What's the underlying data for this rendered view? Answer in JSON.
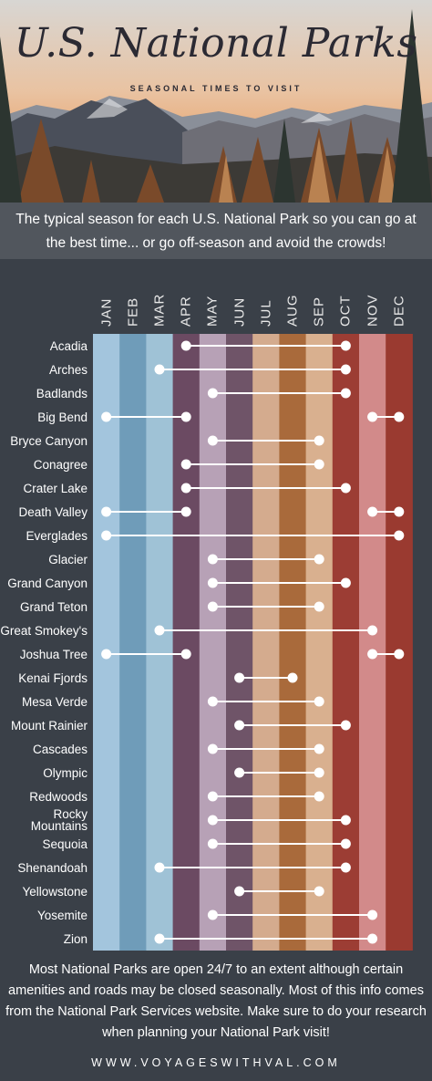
{
  "header": {
    "title": "U.S. National Parks",
    "subtitle": "SEASONAL TIMES TO VISIT"
  },
  "intro": "The typical season for each U.S. National Park so you can go at the best time... or go off-season and avoid the crowds!",
  "months": [
    "JAN",
    "FEB",
    "MAR",
    "APR",
    "MAY",
    "JUN",
    "JUL",
    "AUG",
    "SEP",
    "OCT",
    "NOV",
    "DEC"
  ],
  "month_colors": [
    "#a3c5dd",
    "#6f9cb9",
    "#9fc2d6",
    "#6b4a62",
    "#b7a1b6",
    "#6f5468",
    "#d4ab8e",
    "#a96a3b",
    "#d9b08f",
    "#9c3d34",
    "#d28a8a",
    "#9a3a30"
  ],
  "parks": [
    {
      "name": "Acadia",
      "ranges": [
        [
          4,
          10
        ]
      ]
    },
    {
      "name": "Arches",
      "ranges": [
        [
          3,
          10
        ]
      ]
    },
    {
      "name": "Badlands",
      "ranges": [
        [
          5,
          10
        ]
      ]
    },
    {
      "name": "Big Bend",
      "ranges": [
        [
          1,
          4
        ],
        [
          11,
          12
        ]
      ]
    },
    {
      "name": "Bryce Canyon",
      "ranges": [
        [
          5,
          9
        ]
      ]
    },
    {
      "name": "Conagree",
      "ranges": [
        [
          4,
          9
        ]
      ]
    },
    {
      "name": "Crater Lake",
      "ranges": [
        [
          4,
          10
        ]
      ]
    },
    {
      "name": "Death Valley",
      "ranges": [
        [
          1,
          4
        ],
        [
          11,
          12
        ]
      ]
    },
    {
      "name": "Everglades",
      "ranges": [
        [
          1,
          12
        ]
      ]
    },
    {
      "name": "Glacier",
      "ranges": [
        [
          5,
          9
        ]
      ]
    },
    {
      "name": "Grand Canyon",
      "ranges": [
        [
          5,
          10
        ]
      ]
    },
    {
      "name": "Grand Teton",
      "ranges": [
        [
          5,
          9
        ]
      ]
    },
    {
      "name": "Great Smokey's",
      "ranges": [
        [
          3,
          11
        ]
      ]
    },
    {
      "name": "Joshua Tree",
      "ranges": [
        [
          1,
          4
        ],
        [
          11,
          12
        ]
      ]
    },
    {
      "name": "Kenai Fjords",
      "ranges": [
        [
          6,
          8
        ]
      ]
    },
    {
      "name": "Mesa Verde",
      "ranges": [
        [
          5,
          9
        ]
      ]
    },
    {
      "name": "Mount Rainier",
      "ranges": [
        [
          6,
          10
        ]
      ]
    },
    {
      "name": "Cascades",
      "ranges": [
        [
          5,
          9
        ]
      ]
    },
    {
      "name": "Olympic",
      "ranges": [
        [
          6,
          9
        ]
      ]
    },
    {
      "name": "Redwoods",
      "ranges": [
        [
          5,
          9
        ]
      ]
    },
    {
      "name": "Rocky Mountains",
      "ranges": [
        [
          5,
          10
        ]
      ]
    },
    {
      "name": "Sequoia",
      "ranges": [
        [
          5,
          10
        ]
      ]
    },
    {
      "name": "Shenandoah",
      "ranges": [
        [
          3,
          10
        ]
      ]
    },
    {
      "name": "Yellowstone",
      "ranges": [
        [
          6,
          9
        ]
      ]
    },
    {
      "name": "Yosemite",
      "ranges": [
        [
          5,
          11
        ]
      ]
    },
    {
      "name": "Zion",
      "ranges": [
        [
          3,
          11
        ]
      ]
    }
  ],
  "footer": "Most National Parks are open 24/7 to an extent although certain amenities and roads may be closed seasonally. Most of this info comes from the National Park Services website. Make sure to do your research when planning your National Park visit!",
  "website": "WWW.VOYAGESWITHVAL.COM",
  "colors": {
    "background": "#3a4048",
    "dot": "#ffffff",
    "sky_top": "#d9d9d9",
    "sky_bottom": "#e7a56e"
  }
}
